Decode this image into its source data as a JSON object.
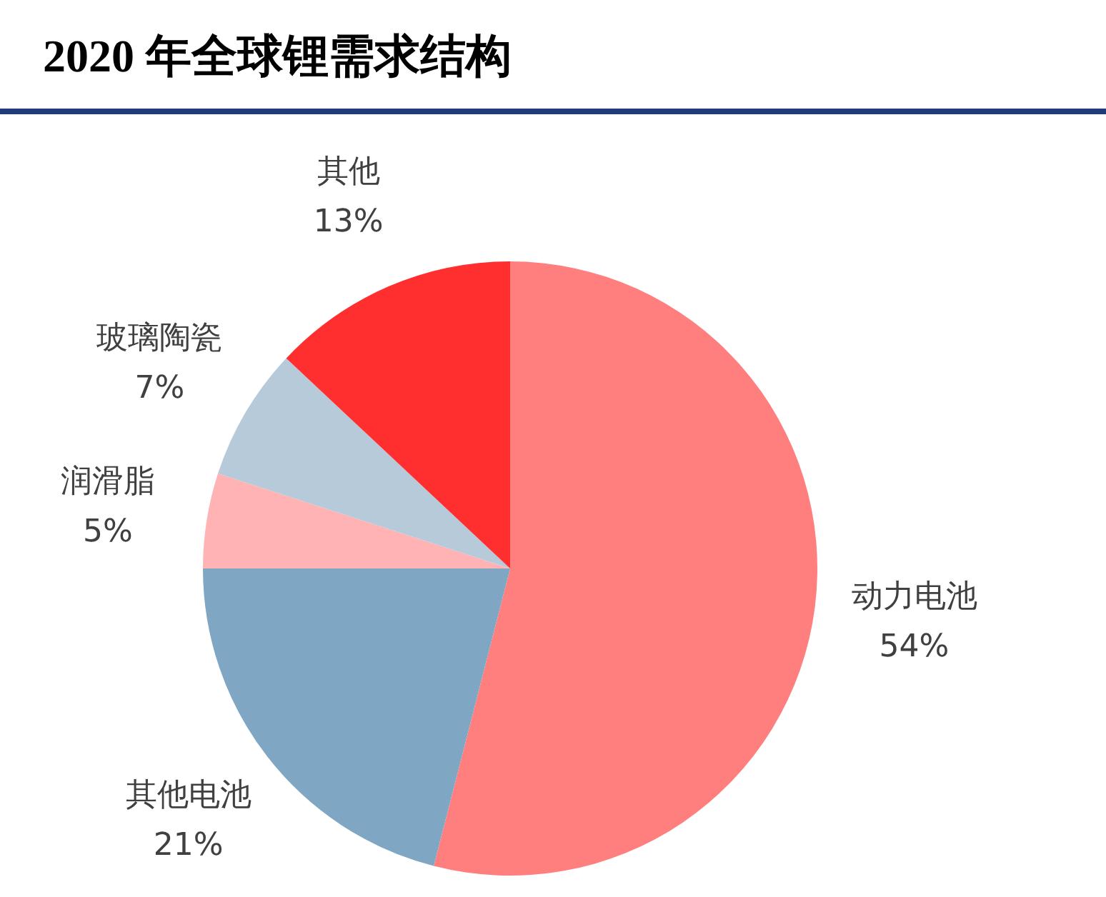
{
  "chart_data": {
    "type": "pie",
    "title": "2020 年全球锂需求结构",
    "categories": [
      "动力电池",
      "其他电池",
      "润滑脂",
      "玻璃陶瓷",
      "其他"
    ],
    "values": [
      54,
      21,
      5,
      7,
      13
    ],
    "value_labels": [
      "54%",
      "21%",
      "5%",
      "7%",
      "13%"
    ],
    "colors": [
      "#ff7f7f",
      "#7fa7c3",
      "#ffb3b5",
      "#b7cad9",
      "#ff2f2f"
    ],
    "legend": false
  }
}
